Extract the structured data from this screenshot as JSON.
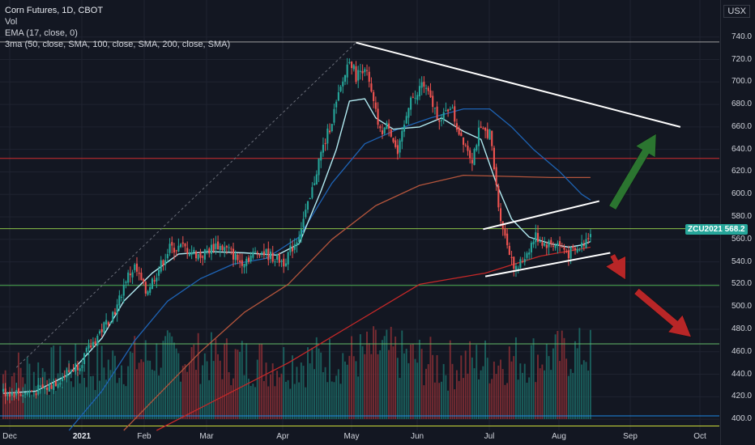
{
  "header": {
    "symbol_line": "Corn Futures, 1D, CBOT",
    "volume_label": "Vol",
    "ema_label": "EMA (17, close, 0)",
    "ma_label": "3ma (50, close, SMA, 100, close, SMA, 200, close, SMA)",
    "currency_button": "USX"
  },
  "colors": {
    "up": "#26a69a",
    "down": "#ef5350",
    "ema": "#b2ebf2",
    "sma50": "#1e63b4",
    "sma100": "#b4553c",
    "sma200": "#c62828",
    "resistance_red": "#d32f2f",
    "support_green_upper": "#8bc34a",
    "support_green_lower": "#4caf50",
    "support_teal": "#66bb6a",
    "arrow_up": "#2e7d32",
    "arrow_down": "#c62828",
    "background": "#131722"
  },
  "current_price": {
    "symbol": "ZCU2021",
    "value": "568.2"
  },
  "chart_data": {
    "type": "candlestick",
    "title": "Corn Futures, 1D, CBOT",
    "y_range": [
      390,
      747
    ],
    "y_ticks": [
      "740.0",
      "720.0",
      "700.0",
      "680.0",
      "660.0",
      "640.0",
      "620.0",
      "600.0",
      "580.0",
      "560.0",
      "540.0",
      "520.0",
      "500.0",
      "480.0",
      "460.0",
      "440.0",
      "420.0",
      "400.0"
    ],
    "x_labels": [
      "Dec",
      "2021",
      "Feb",
      "Mar",
      "Apr",
      "May",
      "Jun",
      "Jul",
      "Aug",
      "Sep",
      "Oct"
    ],
    "x_label_bold": [
      "2021"
    ],
    "horizontal_levels": [
      {
        "value": 735.6,
        "color": "#9e9e9e"
      },
      {
        "value": 632,
        "color": "#d32f2f"
      },
      {
        "value": 569.5,
        "color": "#8bc34a"
      },
      {
        "value": 519,
        "color": "#4caf50"
      },
      {
        "value": 467,
        "color": "#66bb6a"
      },
      {
        "value": 403,
        "color": "#1e88e5"
      },
      {
        "value": 394,
        "color": "#cddc39"
      }
    ],
    "price_anchors": [
      [
        0,
        424
      ],
      [
        10,
        423
      ],
      [
        20,
        428
      ],
      [
        25,
        435
      ],
      [
        35,
        450
      ],
      [
        45,
        480
      ],
      [
        52,
        500
      ],
      [
        56,
        525
      ],
      [
        60,
        535
      ],
      [
        65,
        513
      ],
      [
        70,
        530
      ],
      [
        76,
        552
      ],
      [
        82,
        553
      ],
      [
        90,
        545
      ],
      [
        97,
        555
      ],
      [
        103,
        550
      ],
      [
        108,
        540
      ],
      [
        113,
        545
      ],
      [
        117,
        550
      ],
      [
        122,
        545
      ],
      [
        128,
        540
      ],
      [
        134,
        560
      ],
      [
        140,
        595
      ],
      [
        144,
        630
      ],
      [
        149,
        660
      ],
      [
        155,
        700
      ],
      [
        158,
        722
      ],
      [
        161,
        705
      ],
      [
        165,
        715
      ],
      [
        169,
        680
      ],
      [
        172,
        655
      ],
      [
        176,
        662
      ],
      [
        180,
        635
      ],
      [
        183,
        660
      ],
      [
        186,
        690
      ],
      [
        188,
        683
      ],
      [
        191,
        700
      ],
      [
        194,
        688
      ],
      [
        197,
        675
      ],
      [
        200,
        665
      ],
      [
        204,
        680
      ],
      [
        207,
        660
      ],
      [
        211,
        645
      ],
      [
        214,
        632
      ],
      [
        217,
        655
      ],
      [
        222,
        655
      ],
      [
        226,
        590
      ],
      [
        229,
        562
      ],
      [
        234,
        532
      ],
      [
        238,
        545
      ],
      [
        243,
        563
      ],
      [
        247,
        556
      ],
      [
        253,
        556
      ],
      [
        258,
        547
      ],
      [
        262,
        550
      ],
      [
        266,
        560
      ],
      [
        268,
        568
      ]
    ],
    "ema17": [
      [
        0,
        423
      ],
      [
        15,
        425
      ],
      [
        30,
        440
      ],
      [
        45,
        472
      ],
      [
        55,
        505
      ],
      [
        68,
        530
      ],
      [
        80,
        547
      ],
      [
        95,
        549
      ],
      [
        110,
        548
      ],
      [
        125,
        546
      ],
      [
        135,
        556
      ],
      [
        145,
        603
      ],
      [
        152,
        640
      ],
      [
        158,
        683
      ],
      [
        165,
        685
      ],
      [
        170,
        668
      ],
      [
        178,
        658
      ],
      [
        190,
        660
      ],
      [
        200,
        668
      ],
      [
        210,
        656
      ],
      [
        218,
        649
      ],
      [
        225,
        610
      ],
      [
        232,
        578
      ],
      [
        240,
        562
      ],
      [
        250,
        556
      ],
      [
        258,
        553
      ],
      [
        264,
        555
      ],
      [
        268,
        558
      ]
    ],
    "sma50": [
      [
        30,
        390
      ],
      [
        45,
        425
      ],
      [
        60,
        470
      ],
      [
        75,
        505
      ],
      [
        90,
        525
      ],
      [
        105,
        538
      ],
      [
        120,
        543
      ],
      [
        135,
        562
      ],
      [
        150,
        610
      ],
      [
        165,
        645
      ],
      [
        180,
        658
      ],
      [
        195,
        668
      ],
      [
        210,
        676
      ],
      [
        222,
        676
      ],
      [
        232,
        660
      ],
      [
        242,
        640
      ],
      [
        254,
        620
      ],
      [
        264,
        600
      ],
      [
        268,
        595
      ]
    ],
    "sma100": [
      [
        55,
        390
      ],
      [
        70,
        420
      ],
      [
        90,
        460
      ],
      [
        110,
        495
      ],
      [
        130,
        520
      ],
      [
        150,
        560
      ],
      [
        170,
        590
      ],
      [
        190,
        608
      ],
      [
        210,
        617
      ],
      [
        230,
        616
      ],
      [
        250,
        615
      ],
      [
        268,
        615
      ]
    ],
    "sma200": [
      [
        70,
        390
      ],
      [
        100,
        420
      ],
      [
        130,
        450
      ],
      [
        160,
        485
      ],
      [
        190,
        520
      ],
      [
        220,
        530
      ],
      [
        245,
        545
      ],
      [
        268,
        553
      ]
    ],
    "volume": [
      {
        "bar": 0,
        "value": 0.35
      },
      {
        "bar": 40,
        "value": 0.45
      },
      {
        "bar": 73,
        "value": 0.7
      },
      {
        "bar": 125,
        "value": 0.55
      },
      {
        "bar": 160,
        "value": 0.65
      },
      {
        "bar": 171,
        "value": 0.8
      },
      {
        "bar": 200,
        "value": 0.5
      },
      {
        "bar": 265,
        "value": 0.75
      }
    ],
    "trendlines": [
      {
        "from": [
          "bar 161",
          735
        ],
        "to": [
          "bar 309",
          660
        ],
        "color": "#ffffff"
      },
      {
        "from": [
          "bar 219",
          569
        ],
        "to": [
          "bar 272",
          594
        ],
        "color": "#ffffff"
      },
      {
        "from": [
          "bar 220",
          527
        ],
        "to": [
          "bar 277",
          548
        ],
        "color": "#ffffff"
      },
      {
        "from": [
          "bar 6",
          446
        ],
        "to": [
          "bar 161",
          735
        ],
        "color": "#6b6f7a",
        "dashed": true
      }
    ],
    "arrows": [
      {
        "direction": "up",
        "color": "#2e7d32"
      },
      {
        "direction": "down-short",
        "color": "#c62828"
      },
      {
        "direction": "down-long",
        "color": "#c62828"
      }
    ],
    "grid": true
  }
}
